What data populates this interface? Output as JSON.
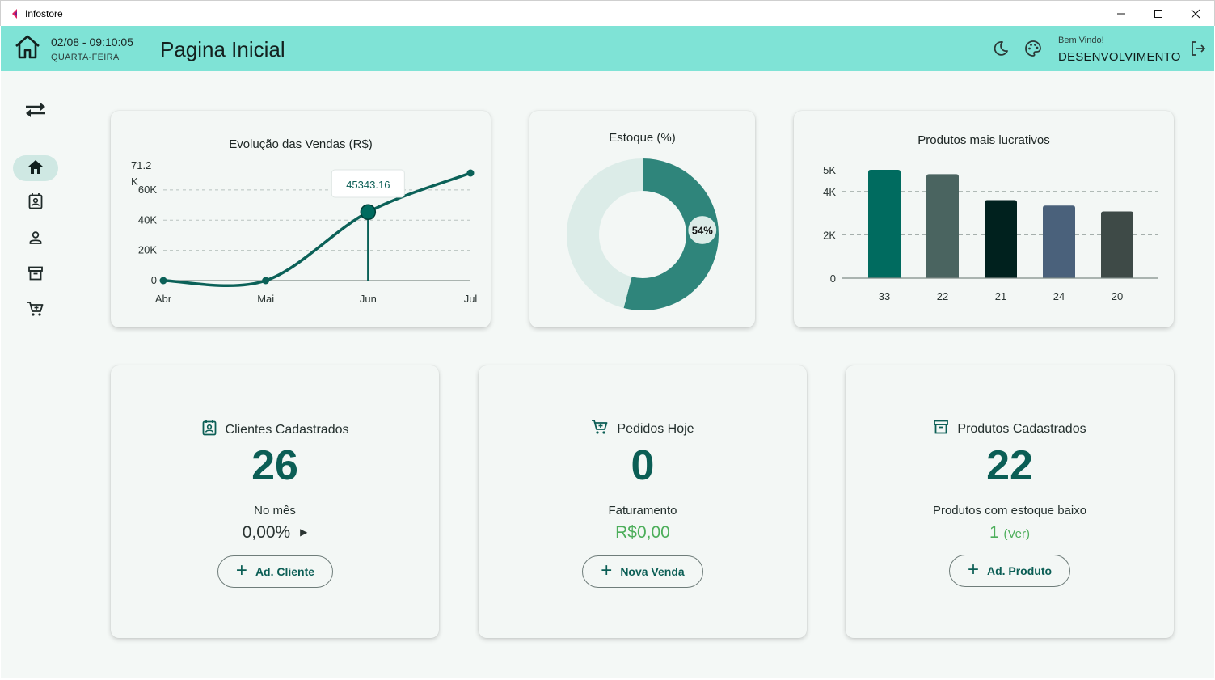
{
  "window": {
    "title": "Infostore",
    "minimize": "—",
    "maximize": "☐",
    "close": "✕"
  },
  "header": {
    "datetime": "02/08 - 09:10:05",
    "weekday": "QUARTA-FEIRA",
    "page_title": "Pagina Inicial",
    "welcome": "Bem Vindo!",
    "username": "DESENVOLVIMENTO",
    "color": "#7fe3d6"
  },
  "rail": {
    "items": [
      {
        "icon": "swap-arrows-icon"
      },
      {
        "icon": "home-icon",
        "active": true
      },
      {
        "icon": "contact-card-icon"
      },
      {
        "icon": "person-icon"
      },
      {
        "icon": "archive-box-icon"
      },
      {
        "icon": "shopping-cart-icon"
      }
    ]
  },
  "chart_data": [
    {
      "type": "line",
      "title": "Evolução das Vendas (R$)",
      "x": [
        "Abr",
        "Mai",
        "Jun",
        "Jul"
      ],
      "values": [
        0,
        0,
        45343.16,
        71200
      ],
      "y_ticks": [
        "0",
        "20K",
        "40K",
        "60K"
      ],
      "y_max_label": "71.2 K",
      "ylim": [
        0,
        71200
      ],
      "grid": true,
      "tooltip": {
        "x": "Jun",
        "text": "45343.16"
      },
      "color": "#0b6158"
    },
    {
      "type": "pie",
      "title": "Estoque (%)",
      "slices": [
        {
          "label": "54%",
          "value": 54,
          "color": "#2f857b"
        },
        {
          "label": "",
          "value": 46,
          "color": "#dcece8"
        }
      ],
      "donut": true
    },
    {
      "type": "bar",
      "title": "Produtos mais lucrativos",
      "categories": [
        "33",
        "22",
        "21",
        "24",
        "20"
      ],
      "values": [
        5000,
        4800,
        3600,
        3350,
        3080
      ],
      "colors": [
        "#006b5f",
        "#4a6460",
        "#00211e",
        "#4a617b",
        "#3e4a47"
      ],
      "y_ticks": [
        "0",
        "2K",
        "4K",
        "5K"
      ],
      "ylim": [
        0,
        5000
      ],
      "grid": true
    }
  ],
  "stats": {
    "clientes": {
      "title": "Clientes Cadastrados",
      "value": "26",
      "sub": "No mês",
      "extra": "0,00%",
      "button": "Ad. Cliente"
    },
    "pedidos": {
      "title": "Pedidos Hoje",
      "value": "0",
      "sub": "Faturamento",
      "extra": "R$0,00",
      "button": "Nova Venda"
    },
    "produtos": {
      "title": "Produtos Cadastrados",
      "value": "22",
      "sub": "Produtos com estoque baixo",
      "extra_count": "1",
      "extra_link": "(Ver)",
      "button": "Ad. Produto"
    }
  }
}
